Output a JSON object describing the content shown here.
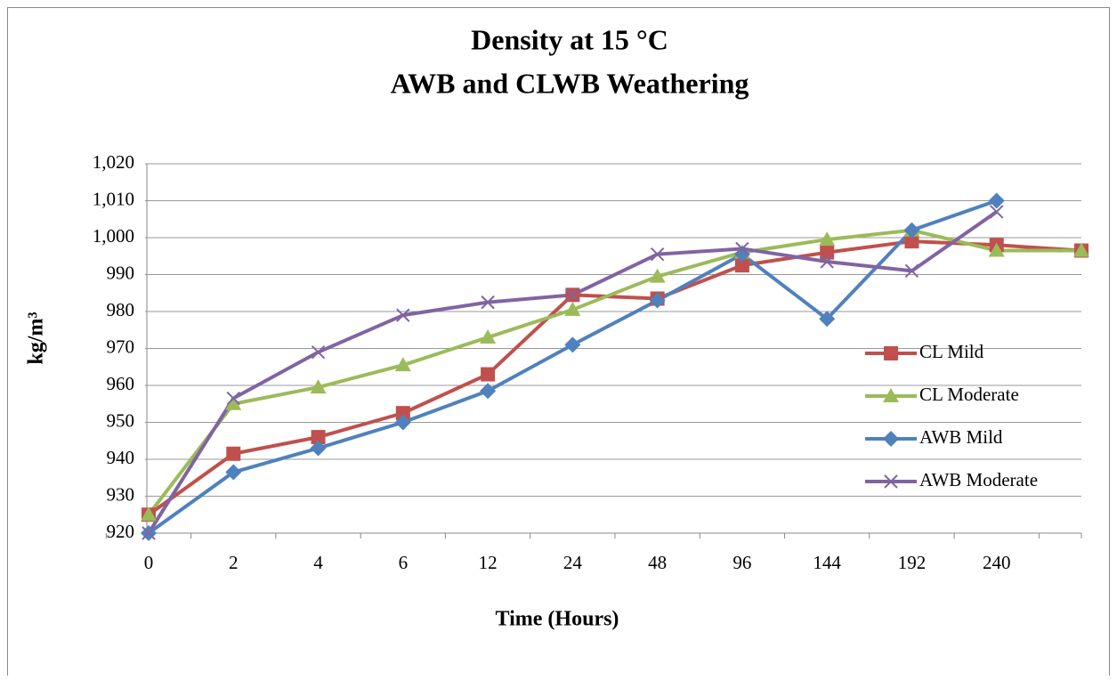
{
  "chart_data": {
    "type": "line",
    "title": [
      "Density at 15 °C",
      "AWB and CLWB Weathering"
    ],
    "xlabel": "Time (Hours)",
    "ylabel": "kg/m³",
    "categories": [
      "0",
      "2",
      "4",
      "6",
      "12",
      "24",
      "48",
      "96",
      "144",
      "192",
      "240",
      null
    ],
    "series": [
      {
        "name": "CL Mild",
        "color": "#c0504d",
        "marker": "square",
        "values": [
          925,
          941.5,
          946,
          952.5,
          963,
          984.5,
          983.5,
          992.5,
          996,
          999,
          998,
          996.5
        ]
      },
      {
        "name": "CL Moderate",
        "color": "#9bbb59",
        "marker": "triangle",
        "values": [
          925,
          955,
          959.5,
          965.5,
          973,
          980.5,
          989.5,
          996,
          999.5,
          1002,
          996.5,
          996.5
        ]
      },
      {
        "name": "AWB Mild",
        "color": "#4f81bd",
        "marker": "diamond",
        "values": [
          920,
          936.5,
          943,
          950,
          958.5,
          971,
          983,
          995.5,
          978,
          1002,
          1010,
          null
        ]
      },
      {
        "name": "AWB Moderate",
        "color": "#8064a2",
        "marker": "x",
        "values": [
          920,
          956.5,
          969,
          979,
          982.5,
          984.5,
          995.5,
          997,
          993.5,
          991,
          1007,
          null
        ]
      }
    ],
    "ylim": [
      920,
      1020
    ],
    "yticks": [
      920,
      930,
      940,
      950,
      960,
      970,
      980,
      990,
      {
        "value": 1000,
        "label": "1,000"
      },
      {
        "value": 1010,
        "label": "1,010"
      },
      {
        "value": 1020,
        "label": "1,020"
      }
    ],
    "grid": true,
    "legend": "right"
  }
}
